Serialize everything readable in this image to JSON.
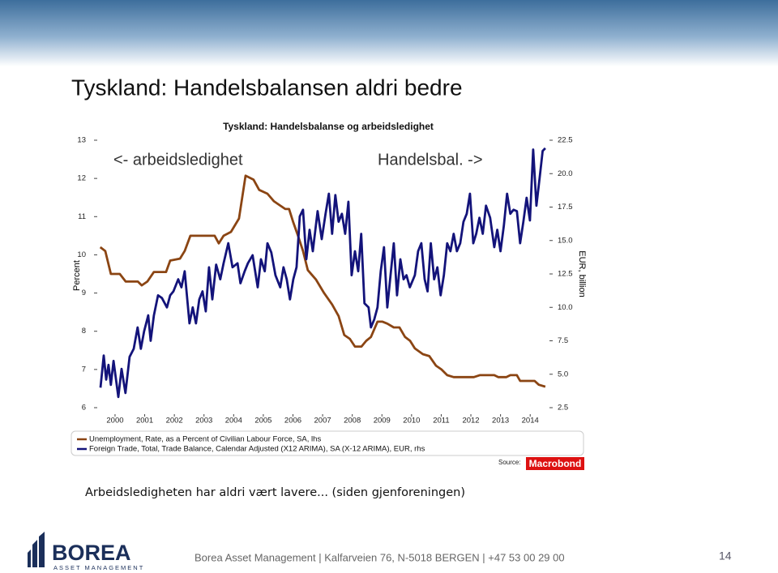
{
  "slide": {
    "title": "Tyskland: Handelsbalansen aldri bedre",
    "note": "Arbeidsledigheten har aldri vært lavere... (siden gjenforeningen)",
    "footer": "Borea Asset Management | Kalfarveien 76, N-5018 BERGEN | +47 53 00 29 00",
    "page_number": "14",
    "logo_name": "BOREA",
    "logo_tagline": "ASSET MANAGEMENT"
  },
  "chart_data": {
    "type": "line",
    "title": "Tyskland: Handelsbalanse og arbeidsledighet",
    "annotations": [
      "<- arbeidsledighet",
      "Handelsbal. ->"
    ],
    "ylabel": "Percent",
    "y2label": "EUR, billion",
    "source_label": "Source:",
    "source": "Macrobond",
    "xlim": [
      1999.9,
      2015.15
    ],
    "xticks": [
      {
        "value": 2000.5,
        "label": "2000"
      },
      {
        "value": 2001.5,
        "label": "2001"
      },
      {
        "value": 2002.5,
        "label": "2002"
      },
      {
        "value": 2003.5,
        "label": "2003"
      },
      {
        "value": 2004.5,
        "label": "2004"
      },
      {
        "value": 2005.5,
        "label": "2005"
      },
      {
        "value": 2006.5,
        "label": "2006"
      },
      {
        "value": 2007.5,
        "label": "2007"
      },
      {
        "value": 2008.5,
        "label": "2008"
      },
      {
        "value": 2009.5,
        "label": "2009"
      },
      {
        "value": 2010.5,
        "label": "2010"
      },
      {
        "value": 2011.5,
        "label": "2011"
      },
      {
        "value": 2012.5,
        "label": "2012"
      },
      {
        "value": 2013.5,
        "label": "2013"
      },
      {
        "value": 2014.5,
        "label": "2014"
      }
    ],
    "ylim": [
      6,
      13
    ],
    "yticks": [
      6,
      7,
      8,
      9,
      10,
      11,
      12,
      13
    ],
    "y2lim": [
      2.5,
      22.5
    ],
    "y2ticks": [
      2.5,
      {
        "value": 5,
        "label": "5.0"
      },
      7.5,
      {
        "value": 10,
        "label": "10.0"
      },
      12.5,
      {
        "value": 15,
        "label": "15.0"
      },
      17.5,
      {
        "value": 20,
        "label": "20.0"
      },
      22.5
    ],
    "series": [
      {
        "name": "Unemployment, Rate, as a Percent of Civilian Labour Force, SA, lhs",
        "color": "#8b4513",
        "x": [
          2000.0,
          2000.17,
          2000.36,
          2000.66,
          2000.86,
          2001.27,
          2001.4,
          2001.59,
          2001.81,
          2002.22,
          2002.36,
          2002.69,
          2002.85,
          2003.04,
          2003.31,
          2003.59,
          2003.86,
          2004.0,
          2004.16,
          2004.41,
          2004.68,
          2004.9,
          2005.17,
          2005.36,
          2005.64,
          2005.86,
          2006.05,
          2006.24,
          2006.37,
          2006.51,
          2006.67,
          2006.84,
          2007.0,
          2007.28,
          2007.55,
          2007.82,
          2008.04,
          2008.23,
          2008.42,
          2008.59,
          2008.81,
          2008.97,
          2009.13,
          2009.35,
          2009.52,
          2009.68,
          2009.9,
          2010.09,
          2010.28,
          2010.45,
          2010.61,
          2010.88,
          2011.1,
          2011.32,
          2011.51,
          2011.7,
          2011.92,
          2012.6,
          2012.8,
          2013.29,
          2013.42,
          2013.7,
          2013.83,
          2014.05,
          2014.16,
          2014.65,
          2014.79,
          2015.01
        ],
        "values": [
          10.2,
          10.1,
          9.5,
          9.5,
          9.3,
          9.3,
          9.2,
          9.3,
          9.55,
          9.55,
          9.85,
          9.9,
          10.1,
          10.5,
          10.5,
          10.5,
          10.5,
          10.3,
          10.5,
          10.6,
          10.95,
          12.07,
          11.97,
          11.7,
          11.6,
          11.4,
          11.3,
          11.2,
          11.2,
          10.85,
          10.5,
          10.1,
          9.6,
          9.35,
          9.0,
          8.7,
          8.4,
          7.9,
          7.8,
          7.6,
          7.6,
          7.75,
          7.85,
          8.25,
          8.25,
          8.2,
          8.1,
          8.1,
          7.85,
          7.75,
          7.55,
          7.4,
          7.35,
          7.1,
          7.0,
          6.85,
          6.8,
          6.8,
          6.85,
          6.85,
          6.8,
          6.8,
          6.85,
          6.85,
          6.7,
          6.7,
          6.6,
          6.55
        ]
      },
      {
        "name": "Foreign Trade, Total, Trade Balance, Calendar Adjusted (X12 ARIMA), SA (X-12 ARIMA), EUR, rhs",
        "color": "#13137a",
        "axis": "y2",
        "x": [
          2000.01,
          2000.12,
          2000.2,
          2000.28,
          2000.36,
          2000.45,
          2000.61,
          2000.72,
          2000.85,
          2000.99,
          2001.13,
          2001.26,
          2001.37,
          2001.48,
          2001.62,
          2001.7,
          2001.81,
          2001.95,
          2002.08,
          2002.25,
          2002.36,
          2002.47,
          2002.63,
          2002.74,
          2002.85,
          2003.01,
          2003.12,
          2003.23,
          2003.34,
          2003.45,
          2003.56,
          2003.67,
          2003.78,
          2003.91,
          2004.05,
          2004.16,
          2004.32,
          2004.46,
          2004.63,
          2004.73,
          2004.87,
          2004.98,
          2005.14,
          2005.31,
          2005.42,
          2005.55,
          2005.64,
          2005.77,
          2005.91,
          2006.07,
          2006.18,
          2006.29,
          2006.4,
          2006.51,
          2006.62,
          2006.73,
          2006.84,
          2006.95,
          2007.06,
          2007.17,
          2007.33,
          2007.47,
          2007.6,
          2007.71,
          2007.82,
          2007.93,
          2008.04,
          2008.15,
          2008.26,
          2008.37,
          2008.48,
          2008.59,
          2008.7,
          2008.8,
          2008.91,
          2009.05,
          2009.13,
          2009.24,
          2009.35,
          2009.46,
          2009.57,
          2009.68,
          2009.79,
          2009.9,
          2010.01,
          2010.12,
          2010.23,
          2010.33,
          2010.44,
          2010.61,
          2010.72,
          2010.83,
          2010.94,
          2011.04,
          2011.15,
          2011.26,
          2011.37,
          2011.48,
          2011.59,
          2011.7,
          2011.81,
          2011.92,
          2012.03,
          2012.14,
          2012.25,
          2012.36,
          2012.47,
          2012.58,
          2012.68,
          2012.79,
          2012.9,
          2013.01,
          2013.15,
          2013.29,
          2013.39,
          2013.5,
          2013.61,
          2013.72,
          2013.83,
          2013.94,
          2014.05,
          2014.16,
          2014.27,
          2014.38,
          2014.49,
          2014.6,
          2014.71,
          2014.82,
          2014.92,
          2015.01
        ],
        "values": [
          4.0,
          6.4,
          4.6,
          5.7,
          4.2,
          6.0,
          3.3,
          5.4,
          3.6,
          6.3,
          6.9,
          8.5,
          6.9,
          8.2,
          9.4,
          7.5,
          9.4,
          10.9,
          10.7,
          10.0,
          10.9,
          11.2,
          12.1,
          11.5,
          12.7,
          8.8,
          10.0,
          8.8,
          10.6,
          11.2,
          9.7,
          13.0,
          10.6,
          13.2,
          12.1,
          13.3,
          14.8,
          13.0,
          13.3,
          11.8,
          12.7,
          13.3,
          13.9,
          11.5,
          13.6,
          12.7,
          14.8,
          14.1,
          12.4,
          11.5,
          13.0,
          12.1,
          10.6,
          12.1,
          13.0,
          16.8,
          17.3,
          13.6,
          15.8,
          14.2,
          17.2,
          15.1,
          17.0,
          18.5,
          15.5,
          18.4,
          16.4,
          17.0,
          15.5,
          17.9,
          12.4,
          14.2,
          12.7,
          15.5,
          10.3,
          10.0,
          8.5,
          9.1,
          10.0,
          12.7,
          14.5,
          10.0,
          12.4,
          14.8,
          10.9,
          13.6,
          12.1,
          12.4,
          11.5,
          12.4,
          14.2,
          14.8,
          12.1,
          11.2,
          14.8,
          12.1,
          13.0,
          10.9,
          12.4,
          14.8,
          14.2,
          15.5,
          14.2,
          14.8,
          16.4,
          17.0,
          18.5,
          14.8,
          15.5,
          16.7,
          15.5,
          17.6,
          16.7,
          14.5,
          15.8,
          14.2,
          16.1,
          18.5,
          17.0,
          17.3,
          17.2,
          14.8,
          16.4,
          18.2,
          16.5,
          21.8,
          17.6,
          19.7,
          21.7,
          21.9
        ]
      }
    ]
  }
}
